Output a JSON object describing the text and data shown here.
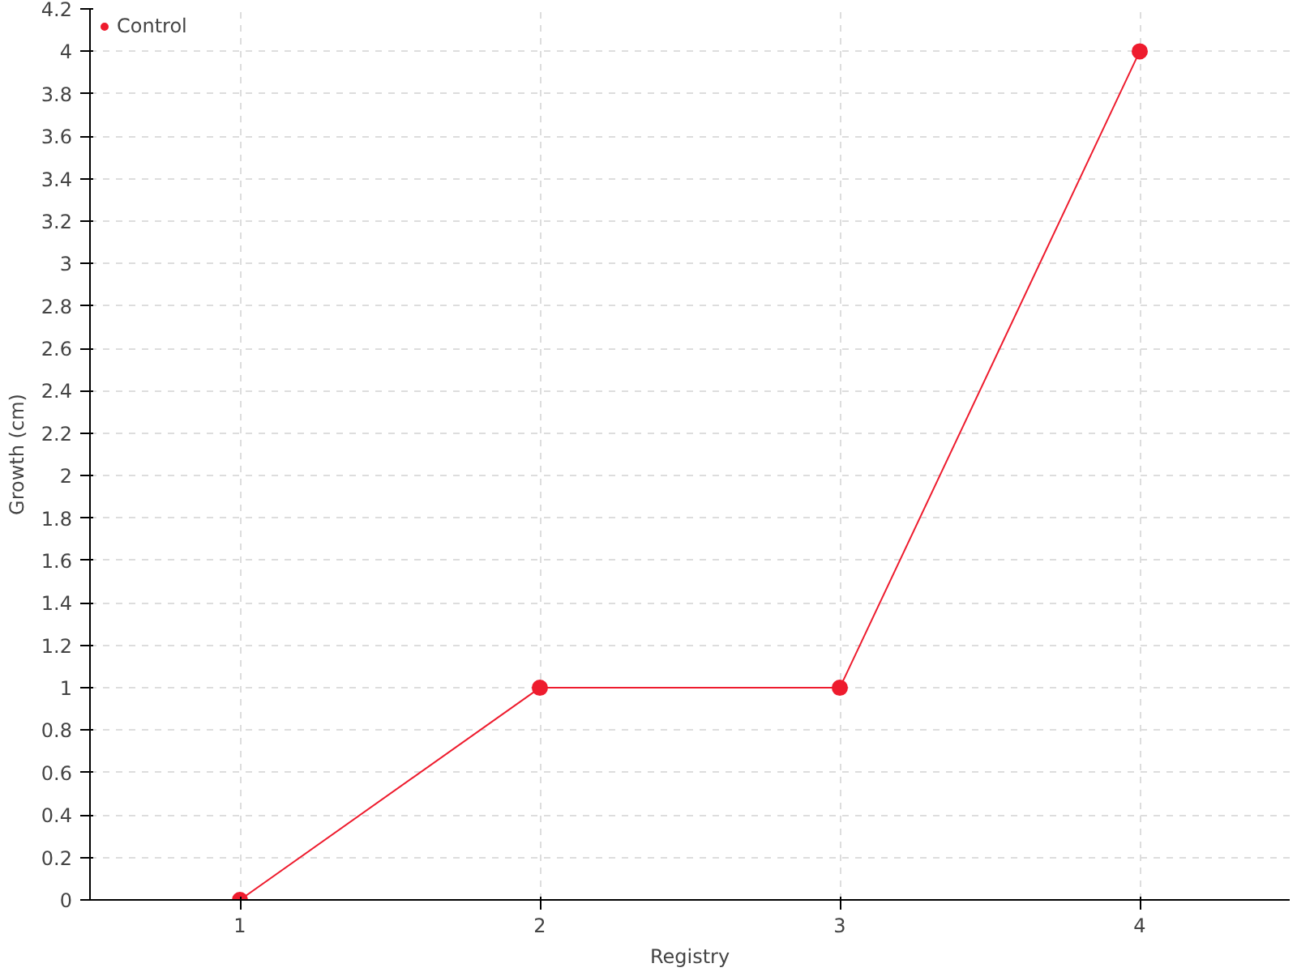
{
  "chart_data": {
    "type": "line",
    "xlabel": "Registry",
    "ylabel": "Growth (cm)",
    "categories": [
      "1",
      "2",
      "3",
      "4"
    ],
    "series": [
      {
        "name": "Control",
        "color": "#ee1c2e",
        "values": [
          0,
          1,
          1,
          4
        ]
      }
    ],
    "ylim": [
      0,
      4.2
    ],
    "yticks": [
      0,
      0.2,
      0.4,
      0.6,
      0.8,
      1,
      1.2,
      1.4,
      1.6,
      1.8,
      2,
      2.2,
      2.4,
      2.6,
      2.8,
      3,
      3.2,
      3.4,
      3.6,
      3.8,
      4,
      4.2
    ],
    "grid": true,
    "legend": "top left",
    "marker": "circle",
    "line_style": "solid"
  }
}
